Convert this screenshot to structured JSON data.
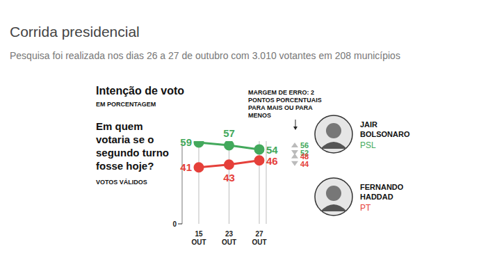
{
  "chart_data": {
    "type": "line",
    "title": "Corrida presidencial",
    "subtitle": "Pesquisa foi realizada nos dias 26 a 27 de outubro com 3.010 votantes em 208 municípios",
    "heading": "Intenção de voto",
    "unit_note": "EM PORCENTAGEM",
    "question": "Em quem votaria se o segundo turno fosse hoje?",
    "basis": "VOTOS VÁLIDOS",
    "annotation": "MARGEM DE ERRO: 2 PONTOS PORCENTUAIS PARA MAIS OU PARA MENOS",
    "categories": [
      "15 OUT",
      "23 OUT",
      "27 OUT"
    ],
    "series": [
      {
        "name": "JAIR BOLSONARO",
        "party": "PSL",
        "color": "#43a95c",
        "values": [
          59,
          57,
          54
        ],
        "margin_high": 56,
        "margin_low": 52
      },
      {
        "name": "FERNANDO HADDAD",
        "party": "PT",
        "color": "#e5403a",
        "values": [
          41,
          43,
          46
        ],
        "margin_high": 48,
        "margin_low": 44
      }
    ],
    "ylim": [
      0,
      60
    ],
    "yticks": [
      0
    ],
    "grid": true,
    "data_labels": true,
    "marker": "circle"
  }
}
